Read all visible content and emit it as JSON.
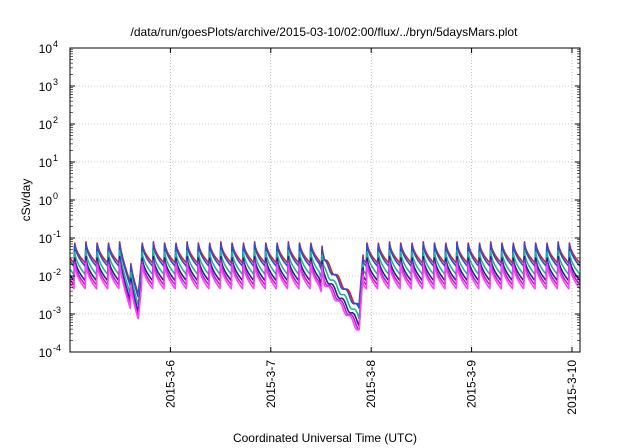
{
  "chart_data": {
    "type": "line",
    "title": "/data/run/goesPlots/archive/2015-03-10/02:00/flux/../bryn/5daysMars.plot",
    "xlabel": "Coordinated Universal Time (UTC)",
    "ylabel": "cSv/day",
    "y_scale": "log",
    "ylim_exp": [
      -4,
      4
    ],
    "y_tick_exponents": [
      -4,
      -3,
      -2,
      -1,
      0,
      1,
      2,
      3,
      4
    ],
    "y_tick_base": "10",
    "xlim_days": [
      5.0,
      10.08
    ],
    "x_ticks": [
      {
        "day": 6,
        "label": "2015-3-6"
      },
      {
        "day": 7,
        "label": "2015-3-7"
      },
      {
        "day": 8,
        "label": "2015-3-8"
      },
      {
        "day": 9,
        "label": "2015-3-9"
      },
      {
        "day": 10,
        "label": "2015-3-10"
      }
    ],
    "grid": true,
    "cycle_days": 0.112,
    "cycle_start_day": 5.04,
    "reference_series_colors": [
      "#e0201f",
      "#2050e0",
      "#18b890",
      "#20209a",
      "#c020c0",
      "#ff40ff"
    ],
    "series": [
      {
        "color": "#e0201f",
        "peak": 0.085,
        "trough": 0.022
      },
      {
        "color": "#2050e0",
        "peak": 0.078,
        "trough": 0.018
      },
      {
        "color": "#18b890",
        "peak": 0.05,
        "trough": 0.011
      },
      {
        "color": "#20209a",
        "peak": 0.035,
        "trough": 0.0075
      },
      {
        "color": "#c020c0",
        "peak": 0.028,
        "trough": 0.0058
      },
      {
        "color": "#ff40ff",
        "peak": 0.024,
        "trough": 0.0046
      }
    ],
    "dropouts": [
      {
        "start": 5.5,
        "min_day": 5.68,
        "end": 5.71,
        "min_factor": 0.12
      },
      {
        "start": 7.48,
        "min_day": 7.88,
        "end": 7.92,
        "min_factor": 0.035
      }
    ]
  }
}
